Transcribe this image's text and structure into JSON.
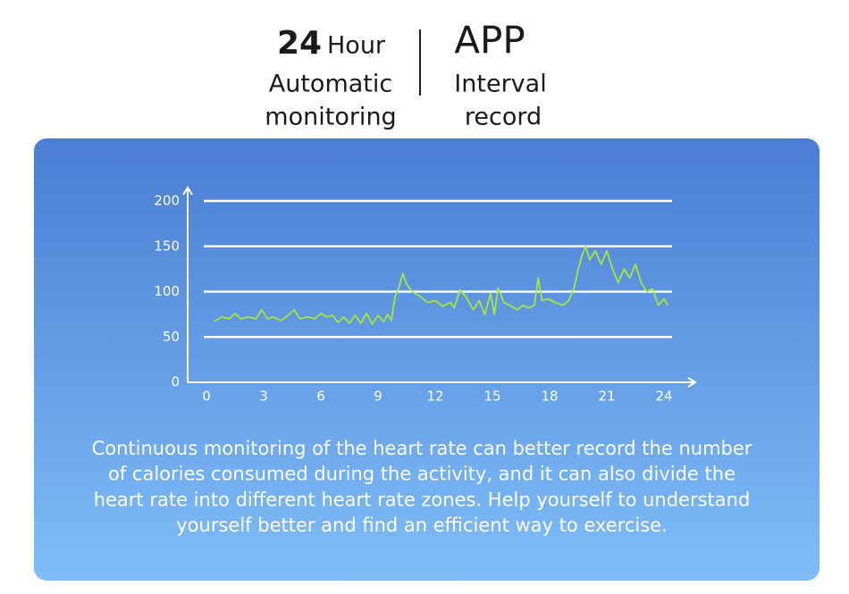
{
  "header": {
    "left": {
      "number": "24",
      "unit": "Hour",
      "lines": [
        "Automatic",
        "monitoring"
      ]
    },
    "right": {
      "title": "APP",
      "lines": [
        "Interval",
        "record"
      ]
    }
  },
  "chart_data": {
    "type": "line",
    "color": "#a6e63f",
    "x": [
      0.4,
      0.8,
      1.2,
      1.5,
      1.8,
      2.2,
      2.6,
      2.9,
      3.2,
      3.5,
      3.9,
      4.3,
      4.6,
      4.9,
      5.3,
      5.7,
      6.0,
      6.3,
      6.6,
      6.9,
      7.2,
      7.5,
      7.8,
      8.1,
      8.4,
      8.7,
      9.0,
      9.3,
      9.5,
      9.7,
      9.9,
      10.1,
      10.3,
      10.5,
      10.8,
      11.2,
      11.6,
      12.0,
      12.4,
      12.8,
      13.0,
      13.3,
      13.6,
      14.0,
      14.3,
      14.6,
      14.9,
      15.1,
      15.3,
      15.6,
      15.9,
      16.3,
      16.6,
      16.9,
      17.2,
      17.4,
      17.6,
      17.9,
      18.3,
      18.7,
      19.0,
      19.3,
      19.5,
      19.7,
      19.9,
      20.1,
      20.4,
      20.7,
      21.0,
      21.3,
      21.6,
      21.9,
      22.2,
      22.5,
      22.8,
      23.1,
      23.4,
      23.7,
      24.0,
      24.2
    ],
    "values": [
      67,
      72,
      70,
      76,
      70,
      72,
      70,
      80,
      70,
      72,
      68,
      74,
      80,
      70,
      72,
      70,
      76,
      72,
      74,
      66,
      72,
      65,
      74,
      65,
      76,
      64,
      74,
      67,
      75,
      68,
      95,
      105,
      120,
      108,
      100,
      95,
      88,
      90,
      84,
      88,
      82,
      102,
      95,
      80,
      90,
      75,
      98,
      75,
      104,
      88,
      85,
      80,
      85,
      82,
      85,
      115,
      90,
      92,
      88,
      85,
      90,
      105,
      125,
      140,
      150,
      135,
      145,
      130,
      145,
      125,
      110,
      125,
      115,
      130,
      110,
      100,
      103,
      85,
      92,
      85
    ],
    "xlim": [
      0,
      24
    ],
    "xticks": [
      0,
      3,
      6,
      9,
      12,
      15,
      18,
      21,
      24
    ],
    "ylim": [
      0,
      200
    ],
    "yticks": [
      0,
      50,
      100,
      150,
      200
    ],
    "grid": true
  },
  "description": [
    "Continuous monitoring of the heart rate can better record the number",
    "of calories consumed during the activity, and it can also divide the",
    "heart rate into different heart rate zones. Help yourself to understand",
    "yourself better and find an efficient way to exercise."
  ]
}
